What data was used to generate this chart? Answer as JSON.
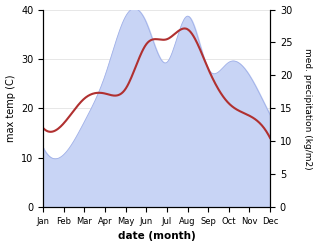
{
  "months": [
    "Jan",
    "Feb",
    "Mar",
    "Apr",
    "May",
    "Jun",
    "Jul",
    "Aug",
    "Sep",
    "Oct",
    "Nov",
    "Dec"
  ],
  "temp_max": [
    16,
    17,
    22,
    23,
    24,
    33,
    34,
    36,
    28,
    21,
    18.5,
    14
  ],
  "precip": [
    9,
    8,
    13,
    20,
    29,
    28,
    22,
    29,
    21,
    22,
    20,
    14
  ],
  "temp_ylim": [
    0,
    40
  ],
  "precip_ylim": [
    0,
    30
  ],
  "temp_color": "#b03030",
  "precip_fill_color": "#c8d4f5",
  "precip_line_color": "#a0b0e8",
  "background_color": "#ffffff",
  "xlabel": "date (month)",
  "ylabel_left": "max temp (C)",
  "ylabel_right": "med. precipitation (kg/m2)",
  "smooth_sigma": 0.8
}
